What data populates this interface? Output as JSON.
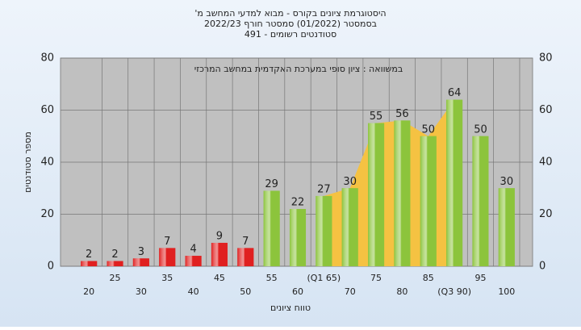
{
  "chart_data": {
    "type": "bar",
    "title": "היסטוגרמת ציונים בקורס - מבוא למדעי המחשב מ'",
    "subtitle": "בסמסטר (01/2022) סמסטר חורף 2022/23",
    "subtitle2": "סטודנטים רשומים - 491",
    "annotation": "במשוואה : ציון סופי במערכת האקדמית במחשב המרכזי",
    "x_label": "טווח ציונים",
    "y_label": "מספר סטודנטים",
    "categories": [
      "20",
      "25",
      "30",
      "35",
      "40",
      "45",
      "50",
      "55",
      "60",
      "(Q1 65)",
      "70",
      "75",
      "80",
      "85",
      "(Q3 90)",
      "95",
      "100"
    ],
    "values": [
      2,
      2,
      3,
      7,
      4,
      9,
      7,
      29,
      22,
      27,
      30,
      55,
      56,
      50,
      64,
      50,
      30
    ],
    "colors": [
      "#e02020",
      "#e02020",
      "#e02020",
      "#e02020",
      "#e02020",
      "#e02020",
      "#e02020",
      "#8cc43c",
      "#8cc43c",
      "#8cc43c",
      "#8cc43c",
      "#8cc43c",
      "#8cc43c",
      "#8cc43c",
      "#8cc43c",
      "#8cc43c",
      "#8cc43c"
    ],
    "quartile_band": [
      9,
      14
    ],
    "band_color": "#f5c242",
    "ylim": [
      0,
      80
    ],
    "yticks": [
      0,
      20,
      40,
      60,
      80
    ],
    "y2lim": [
      0,
      80
    ],
    "y2ticks": [
      0,
      20,
      40,
      60,
      80
    ],
    "grid": true
  }
}
